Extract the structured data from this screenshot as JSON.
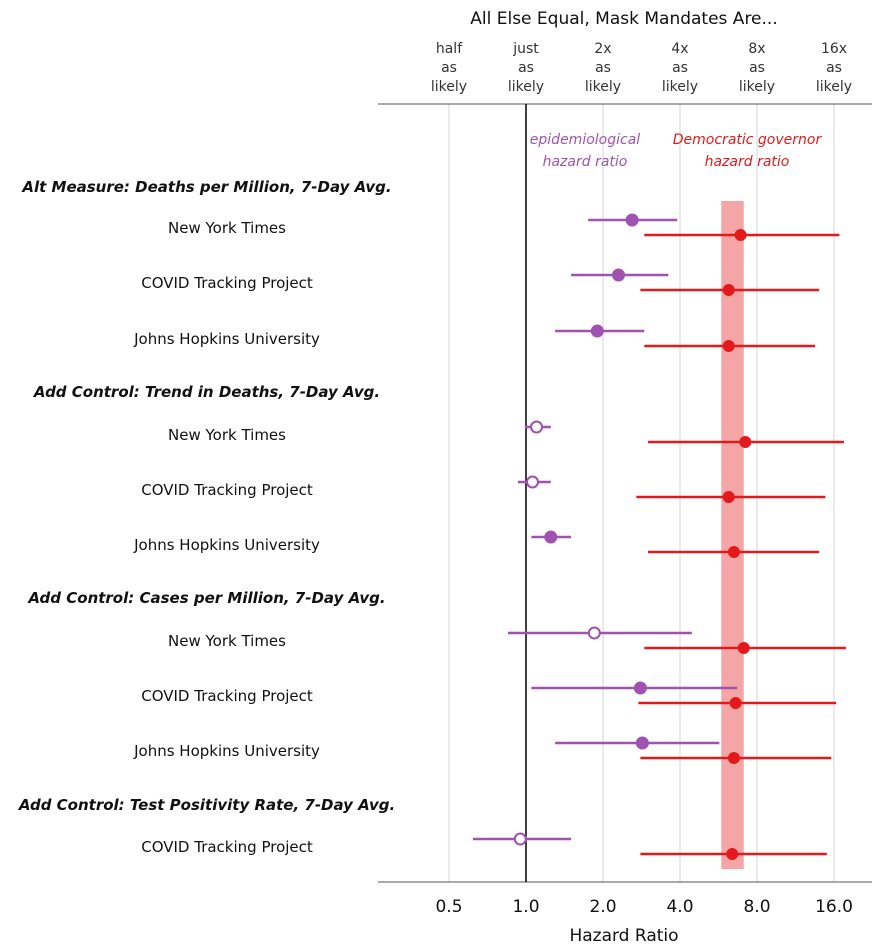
{
  "chart_data": {
    "type": "forest-plot",
    "title": "All Else Equal, Mask Mandates Are...",
    "xlabel": "Hazard Ratio",
    "x_scale": "log2",
    "xlim": [
      0.35,
      28
    ],
    "x_ticks": [
      0.5,
      1.0,
      2.0,
      4.0,
      8.0,
      16.0
    ],
    "x_tick_labels": [
      "0.5",
      "1.0",
      "2.0",
      "4.0",
      "8.0",
      "16.0"
    ],
    "top_tick_labels": [
      [
        "half",
        "as",
        "likely"
      ],
      [
        "just",
        "as",
        "likely"
      ],
      [
        "2x",
        "as",
        "likely"
      ],
      [
        "4x",
        "as",
        "likely"
      ],
      [
        "8x",
        "as",
        "likely"
      ],
      [
        "16x",
        "as",
        "likely"
      ]
    ],
    "reference_line": 1.0,
    "highlight_band": [
      5.8,
      7.1
    ],
    "grid": "vertical",
    "series": [
      {
        "name": "epidemiological hazard ratio",
        "color": "#a052b0"
      },
      {
        "name": "Democratic governor hazard ratio",
        "color": "#e31a1c"
      }
    ],
    "groups": [
      {
        "heading": "Alt Measure: Deaths per Million, 7-Day Avg.",
        "rows": [
          {
            "label": "New York Times",
            "epi": {
              "est": 2.6,
              "lo": 1.75,
              "hi": 3.9,
              "significant": true
            },
            "gov": {
              "est": 6.9,
              "lo": 2.9,
              "hi": 16.8
            }
          },
          {
            "label": "COVID Tracking Project",
            "epi": {
              "est": 2.3,
              "lo": 1.5,
              "hi": 3.6,
              "significant": true
            },
            "gov": {
              "est": 6.2,
              "lo": 2.8,
              "hi": 14.0
            }
          },
          {
            "label": "Johns Hopkins University",
            "epi": {
              "est": 1.9,
              "lo": 1.3,
              "hi": 2.9,
              "significant": true
            },
            "gov": {
              "est": 6.2,
              "lo": 2.9,
              "hi": 13.5
            }
          }
        ]
      },
      {
        "heading": "Add Control: Trend in Deaths, 7-Day Avg.",
        "rows": [
          {
            "label": "New York Times",
            "epi": {
              "est": 1.1,
              "lo": 0.99,
              "hi": 1.25,
              "significant": false
            },
            "gov": {
              "est": 7.2,
              "lo": 3.0,
              "hi": 17.5
            }
          },
          {
            "label": "COVID Tracking Project",
            "epi": {
              "est": 1.06,
              "lo": 0.93,
              "hi": 1.25,
              "significant": false
            },
            "gov": {
              "est": 6.2,
              "lo": 2.7,
              "hi": 14.8
            }
          },
          {
            "label": "Johns Hopkins University",
            "epi": {
              "est": 1.25,
              "lo": 1.05,
              "hi": 1.5,
              "significant": true
            },
            "gov": {
              "est": 6.5,
              "lo": 3.0,
              "hi": 14.0
            }
          }
        ]
      },
      {
        "heading": "Add Control: Cases per Million, 7-Day Avg.",
        "rows": [
          {
            "label": "New York Times",
            "epi": {
              "est": 1.85,
              "lo": 0.85,
              "hi": 4.45,
              "significant": false
            },
            "gov": {
              "est": 7.1,
              "lo": 2.9,
              "hi": 17.8
            }
          },
          {
            "label": "COVID Tracking Project",
            "epi": {
              "est": 2.8,
              "lo": 1.05,
              "hi": 6.7,
              "significant": true
            },
            "gov": {
              "est": 6.6,
              "lo": 2.75,
              "hi": 16.3
            }
          },
          {
            "label": "Johns Hopkins University",
            "epi": {
              "est": 2.85,
              "lo": 1.3,
              "hi": 5.7,
              "significant": true
            },
            "gov": {
              "est": 6.5,
              "lo": 2.8,
              "hi": 15.6
            }
          }
        ]
      },
      {
        "heading": "Add Control: Test Positivity Rate, 7-Day Avg.",
        "rows": [
          {
            "label": "COVID Tracking Project",
            "epi": {
              "est": 0.95,
              "lo": 0.62,
              "hi": 1.5,
              "significant": false
            },
            "gov": {
              "est": 6.4,
              "lo": 2.8,
              "hi": 15.0
            }
          }
        ]
      }
    ]
  },
  "colors": {
    "epi": "#a052b0",
    "gov": "#e31a1c",
    "band": "#f4a6a6",
    "grid": "#d4d4d4",
    "axis": "#555555",
    "ref_line": "#000000"
  }
}
